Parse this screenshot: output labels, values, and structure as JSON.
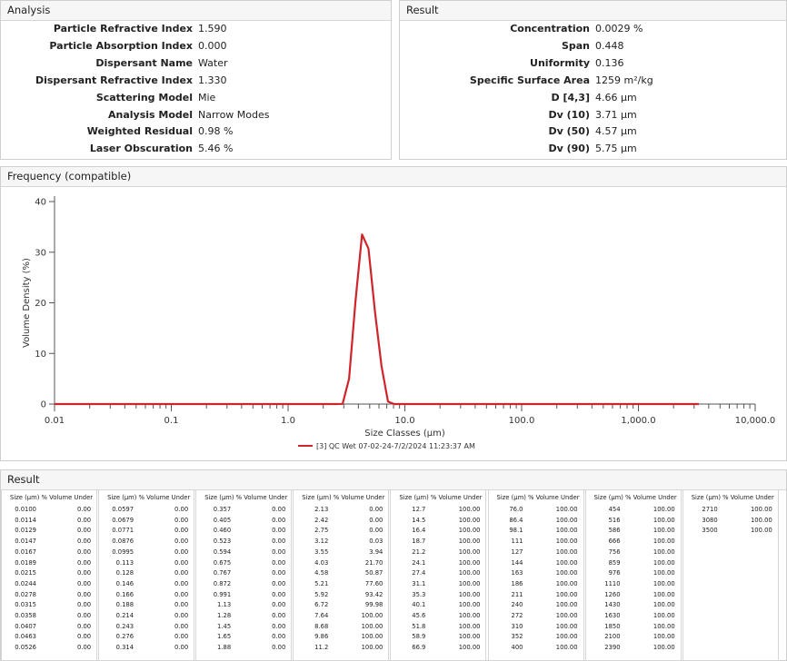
{
  "analysis": {
    "title": "Analysis",
    "rows": [
      {
        "label": "Particle Refractive Index",
        "value": "1.590"
      },
      {
        "label": "Particle Absorption Index",
        "value": "0.000"
      },
      {
        "label": "Dispersant Name",
        "value": "Water"
      },
      {
        "label": "Dispersant Refractive Index",
        "value": "1.330"
      },
      {
        "label": "Scattering Model",
        "value": "Mie"
      },
      {
        "label": "Analysis Model",
        "value": "Narrow Modes"
      },
      {
        "label": "Weighted Residual",
        "value": "0.98 %"
      },
      {
        "label": "Laser Obscuration",
        "value": "5.46 %"
      }
    ]
  },
  "result": {
    "title": "Result",
    "rows": [
      {
        "label": "Concentration",
        "value": "0.0029 %"
      },
      {
        "label": "Span",
        "value": "0.448"
      },
      {
        "label": "Uniformity",
        "value": "0.136"
      },
      {
        "label": "Specific Surface Area",
        "value": "1259 m²/kg"
      },
      {
        "label": "D [4,3]",
        "value": "4.66 µm"
      },
      {
        "label": "Dv (10)",
        "value": "3.71 µm"
      },
      {
        "label": "Dv (50)",
        "value": "4.57 µm"
      },
      {
        "label": "Dv (90)",
        "value": "5.75 µm"
      }
    ]
  },
  "chart_data": {
    "type": "line",
    "title": "Frequency (compatible)",
    "x_label": "Size Classes (µm)",
    "y_label": "Volume Density (%)",
    "xscale": "log",
    "xlim": [
      0.01,
      10000
    ],
    "ylim": [
      0,
      40
    ],
    "xticks": [
      0.01,
      0.1,
      {
        "value": 1,
        "label": "1.0"
      },
      {
        "value": 10,
        "label": "10.0"
      },
      {
        "value": 100,
        "label": "100.0"
      },
      {
        "value": 1000,
        "label": "1,000.0"
      },
      {
        "value": 10000,
        "label": "10,000.0"
      }
    ],
    "xminorticks": [
      0.02,
      0.03,
      0.04,
      0.05,
      0.06,
      0.07,
      0.08,
      0.09,
      0.2,
      0.3,
      0.4,
      0.5,
      0.6,
      0.7,
      0.8,
      0.9,
      2,
      3,
      4,
      5,
      6,
      7,
      8,
      9,
      20,
      30,
      40,
      50,
      60,
      70,
      80,
      90,
      200,
      300,
      400,
      500,
      600,
      700,
      800,
      900,
      2000,
      3000,
      4000,
      5000,
      6000,
      7000,
      8000,
      9000
    ],
    "yticks": [
      0,
      10,
      20,
      30,
      40
    ],
    "grid": false,
    "legend": "bottom",
    "x": [
      0.01,
      2.6,
      2.93,
      3.33,
      3.78,
      4.3,
      4.88,
      5.55,
      6.31,
      7.17,
      8.1,
      3290
    ],
    "series": [
      {
        "name": "[3] QC Wet 07-02-24-7/2/2024 11:23:37 AM",
        "color": "#d0242b",
        "values": [
          0,
          0,
          0.03,
          5,
          20.4,
          33.5,
          30.7,
          18.2,
          7.5,
          0.5,
          0,
          0
        ]
      }
    ]
  },
  "table": {
    "title": "Result",
    "headers": [
      "Size (µm)",
      "% Volume Under"
    ],
    "columns": [
      {
        "sizes": [
          "0.0100",
          "0.0114",
          "0.0129",
          "0.0147",
          "0.0167",
          "0.0189",
          "0.0215",
          "0.0244",
          "0.0278",
          "0.0315",
          "0.0358",
          "0.0407",
          "0.0463",
          "0.0526"
        ],
        "under": [
          "0.00",
          "0.00",
          "0.00",
          "0.00",
          "0.00",
          "0.00",
          "0.00",
          "0.00",
          "0.00",
          "0.00",
          "0.00",
          "0.00",
          "0.00",
          "0.00"
        ]
      },
      {
        "sizes": [
          "0.0597",
          "0.0679",
          "0.0771",
          "0.0876",
          "0.0995",
          "0.113",
          "0.128",
          "0.146",
          "0.166",
          "0.188",
          "0.214",
          "0.243",
          "0.276",
          "0.314"
        ],
        "under": [
          "0.00",
          "0.00",
          "0.00",
          "0.00",
          "0.00",
          "0.00",
          "0.00",
          "0.00",
          "0.00",
          "0.00",
          "0.00",
          "0.00",
          "0.00",
          "0.00"
        ]
      },
      {
        "sizes": [
          "0.357",
          "0.405",
          "0.460",
          "0.523",
          "0.594",
          "0.675",
          "0.767",
          "0.872",
          "0.991",
          "1.13",
          "1.28",
          "1.45",
          "1.65",
          "1.88"
        ],
        "under": [
          "0.00",
          "0.00",
          "0.00",
          "0.00",
          "0.00",
          "0.00",
          "0.00",
          "0.00",
          "0.00",
          "0.00",
          "0.00",
          "0.00",
          "0.00",
          "0.00"
        ]
      },
      {
        "sizes": [
          "2.13",
          "2.42",
          "2.75",
          "3.12",
          "3.55",
          "4.03",
          "4.58",
          "5.21",
          "5.92",
          "6.72",
          "7.64",
          "8.68",
          "9.86",
          "11.2"
        ],
        "under": [
          "0.00",
          "0.00",
          "0.00",
          "0.03",
          "3.94",
          "21.70",
          "50.87",
          "77.60",
          "93.42",
          "99.98",
          "100.00",
          "100.00",
          "100.00",
          "100.00"
        ]
      },
      {
        "sizes": [
          "12.7",
          "14.5",
          "16.4",
          "18.7",
          "21.2",
          "24.1",
          "27.4",
          "31.1",
          "35.3",
          "40.1",
          "45.6",
          "51.8",
          "58.9",
          "66.9"
        ],
        "under": [
          "100.00",
          "100.00",
          "100.00",
          "100.00",
          "100.00",
          "100.00",
          "100.00",
          "100.00",
          "100.00",
          "100.00",
          "100.00",
          "100.00",
          "100.00",
          "100.00"
        ]
      },
      {
        "sizes": [
          "76.0",
          "86.4",
          "98.1",
          "111",
          "127",
          "144",
          "163",
          "186",
          "211",
          "240",
          "272",
          "310",
          "352",
          "400"
        ],
        "under": [
          "100.00",
          "100.00",
          "100.00",
          "100.00",
          "100.00",
          "100.00",
          "100.00",
          "100.00",
          "100.00",
          "100.00",
          "100.00",
          "100.00",
          "100.00",
          "100.00"
        ]
      },
      {
        "sizes": [
          "454",
          "516",
          "586",
          "666",
          "756",
          "859",
          "976",
          "1110",
          "1260",
          "1430",
          "1630",
          "1850",
          "2100",
          "2390"
        ],
        "under": [
          "100.00",
          "100.00",
          "100.00",
          "100.00",
          "100.00",
          "100.00",
          "100.00",
          "100.00",
          "100.00",
          "100.00",
          "100.00",
          "100.00",
          "100.00",
          "100.00"
        ]
      },
      {
        "sizes": [
          "2710",
          "3080",
          "3500"
        ],
        "under": [
          "100.00",
          "100.00",
          "100.00"
        ]
      }
    ]
  }
}
